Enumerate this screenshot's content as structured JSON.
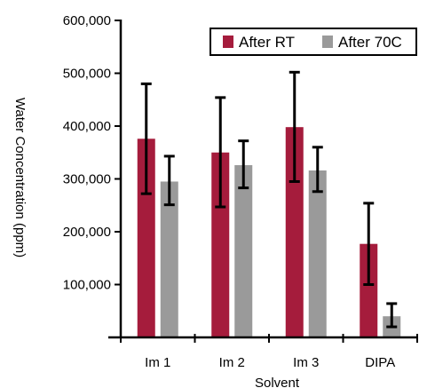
{
  "chart_data": {
    "type": "bar",
    "xlabel": "Solvent",
    "ylabel": "Water Concentration (ppm)",
    "categories": [
      "Im 1",
      "Im 2",
      "Im 3",
      "DIPA"
    ],
    "ylim": [
      0,
      600000
    ],
    "yticks": [
      100000,
      200000,
      300000,
      400000,
      500000,
      600000
    ],
    "ytick_labels": [
      "100,000",
      "200,000",
      "300,000",
      "400,000",
      "500,000",
      "600,000"
    ],
    "legend_position": "top-right",
    "grid": false,
    "series": [
      {
        "name": "After RT",
        "color": "#a51c3c",
        "values": [
          376000,
          350000,
          398000,
          177000
        ],
        "error": [
          [
            104000,
            104000
          ],
          [
            103000,
            104000
          ],
          [
            103000,
            104000
          ],
          [
            77000,
            77000
          ]
        ]
      },
      {
        "name": "After 70C",
        "color": "#9a9a9a",
        "values": [
          295000,
          326000,
          316000,
          40000
        ],
        "error": [
          [
            44000,
            48000
          ],
          [
            43000,
            46000
          ],
          [
            40000,
            44000
          ],
          [
            20000,
            24000
          ]
        ]
      }
    ]
  }
}
